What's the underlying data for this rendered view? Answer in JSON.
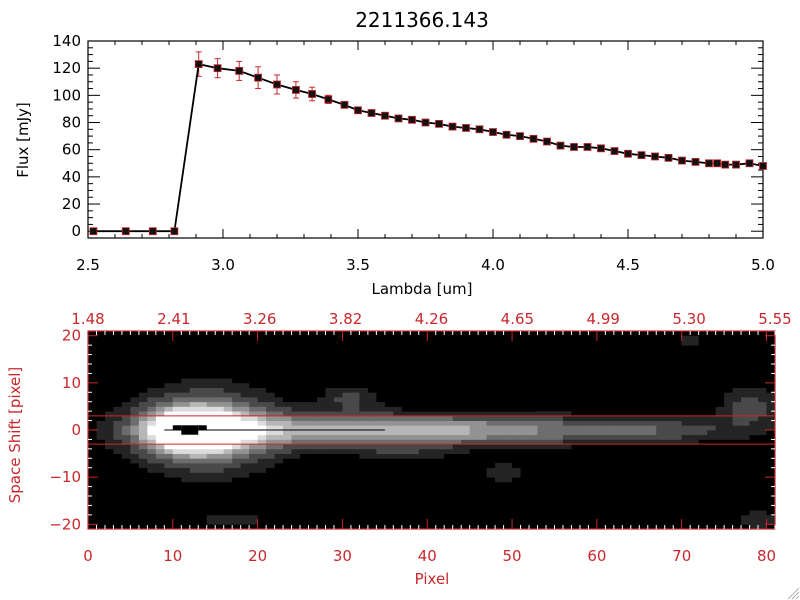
{
  "title": "2211366.143",
  "colors": {
    "axis_black": "#000000",
    "accent_red": "#c8282c",
    "marker": "#000000",
    "errorbar": "#c8282c"
  },
  "chart_data": [
    {
      "type": "line",
      "title": "2211366.143",
      "xlabel": "Lambda [um]",
      "ylabel": "Flux [mJy]",
      "xlim": [
        2.5,
        5.0
      ],
      "ylim": [
        -5,
        140
      ],
      "xticks": [
        2.5,
        3.0,
        3.5,
        4.0,
        4.5,
        5.0
      ],
      "xtick_labels": [
        "2.5",
        "3.0",
        "3.5",
        "4.0",
        "4.5",
        "5.0"
      ],
      "yticks": [
        0,
        20,
        40,
        60,
        80,
        100,
        120,
        140
      ],
      "ytick_labels": [
        "0",
        "20",
        "40",
        "60",
        "80",
        "100",
        "120",
        "140"
      ],
      "grid": false,
      "series": [
        {
          "x": [
            2.52,
            2.64,
            2.74,
            2.82,
            2.91,
            2.98,
            3.06,
            3.13,
            3.2,
            3.27,
            3.33,
            3.39,
            3.45,
            3.5,
            3.55,
            3.6,
            3.65,
            3.7,
            3.75,
            3.8,
            3.85,
            3.9,
            3.95,
            4.0,
            4.05,
            4.1,
            4.15,
            4.2,
            4.25,
            4.3,
            4.35,
            4.4,
            4.45,
            4.5,
            4.55,
            4.6,
            4.65,
            4.7,
            4.75,
            4.8,
            4.83,
            4.86,
            4.9,
            4.95,
            5.0
          ],
          "y": [
            0,
            0,
            0,
            0,
            123,
            120,
            118,
            113,
            108,
            104,
            101,
            97,
            93,
            89,
            87,
            85,
            83,
            82,
            80,
            79,
            77,
            76,
            75,
            73,
            71,
            70,
            68,
            66,
            63,
            62,
            62,
            61,
            59,
            57,
            56,
            55,
            54,
            52,
            51,
            50,
            50,
            49,
            49,
            50,
            48
          ],
          "yerr": [
            0,
            0,
            0,
            0,
            9,
            7,
            7,
            8,
            7,
            6,
            5,
            3,
            2,
            1.5,
            1.5,
            1.5,
            1.5,
            1.5,
            1.5,
            1.5,
            1.5,
            1.5,
            1.5,
            1.5,
            1.5,
            1.5,
            1.5,
            1.5,
            1.5,
            1.5,
            1.5,
            1.5,
            1.5,
            1.5,
            1.5,
            1.5,
            1.5,
            1.5,
            1.5,
            1.5,
            1.5,
            1.5,
            1.5,
            1.5,
            1.5
          ]
        }
      ]
    },
    {
      "type": "heatmap",
      "xlabel": "Pixel",
      "ylabel": "Space Shift [pixel]",
      "xlim": [
        0,
        81
      ],
      "ylim": [
        -21,
        21
      ],
      "xticks": [
        0,
        10,
        20,
        30,
        40,
        50,
        60,
        70,
        80
      ],
      "xtick_labels": [
        "0",
        "10",
        "20",
        "30",
        "40",
        "50",
        "60",
        "70",
        "80"
      ],
      "yticks": [
        -20,
        -10,
        0,
        10,
        20
      ],
      "ytick_labels": [
        "−20",
        "−10",
        "0",
        "10",
        "20"
      ],
      "top_axis_labels": [
        "1.48",
        "2.41",
        "3.26",
        "3.82",
        "4.26",
        "4.65",
        "4.99",
        "5.30",
        "5.55"
      ],
      "extraction_aperture": [
        -3,
        3
      ],
      "colormap": "gray",
      "sources": [
        {
          "x": 12,
          "y": 0,
          "amp": 1.0,
          "sx": 3.5,
          "sy": 3.0
        },
        {
          "x": 14,
          "y": 0,
          "amp": 0.75,
          "sx": 6.0,
          "sy": 6.0
        },
        {
          "x": 30,
          "y": 0,
          "amp": 0.55,
          "sx": 14.0,
          "sy": 2.6
        },
        {
          "x": 50,
          "y": 0,
          "amp": 0.4,
          "sx": 14.0,
          "sy": 2.2
        },
        {
          "x": 68,
          "y": 0,
          "amp": 0.22,
          "sx": 7.0,
          "sy": 2.0
        },
        {
          "x": 31,
          "y": 7,
          "amp": 0.3,
          "sx": 2.5,
          "sy": 2.0
        },
        {
          "x": 78,
          "y": 5,
          "amp": 0.35,
          "sx": 2.5,
          "sy": 3.0
        },
        {
          "x": 49,
          "y": -9,
          "amp": 0.25,
          "sx": 2.0,
          "sy": 1.5
        },
        {
          "x": 17,
          "y": -19,
          "amp": 0.22,
          "sx": 3.5,
          "sy": 1.5
        },
        {
          "x": 5,
          "y": -19,
          "amp": 0.15,
          "sx": 2.0,
          "sy": 1.5
        },
        {
          "x": 79,
          "y": -19,
          "amp": 0.22,
          "sx": 2.5,
          "sy": 2.0
        },
        {
          "x": 6,
          "y": 19,
          "amp": 0.15,
          "sx": 4.0,
          "sy": 1.5
        },
        {
          "x": 37,
          "y": 19,
          "amp": 0.12,
          "sx": 3.0,
          "sy": 1.5
        },
        {
          "x": 71,
          "y": 19,
          "amp": 0.18,
          "sx": 2.0,
          "sy": 1.0
        },
        {
          "x": 37,
          "y": -5,
          "amp": 0.18,
          "sx": 4.0,
          "sy": 1.5
        }
      ],
      "saturated_core": [
        {
          "x": 10,
          "y": 0,
          "w": 1,
          "h": 1
        },
        {
          "x": 11,
          "y": -1,
          "w": 2,
          "h": 2
        },
        {
          "x": 13,
          "y": 0,
          "w": 1,
          "h": 1
        }
      ]
    }
  ]
}
